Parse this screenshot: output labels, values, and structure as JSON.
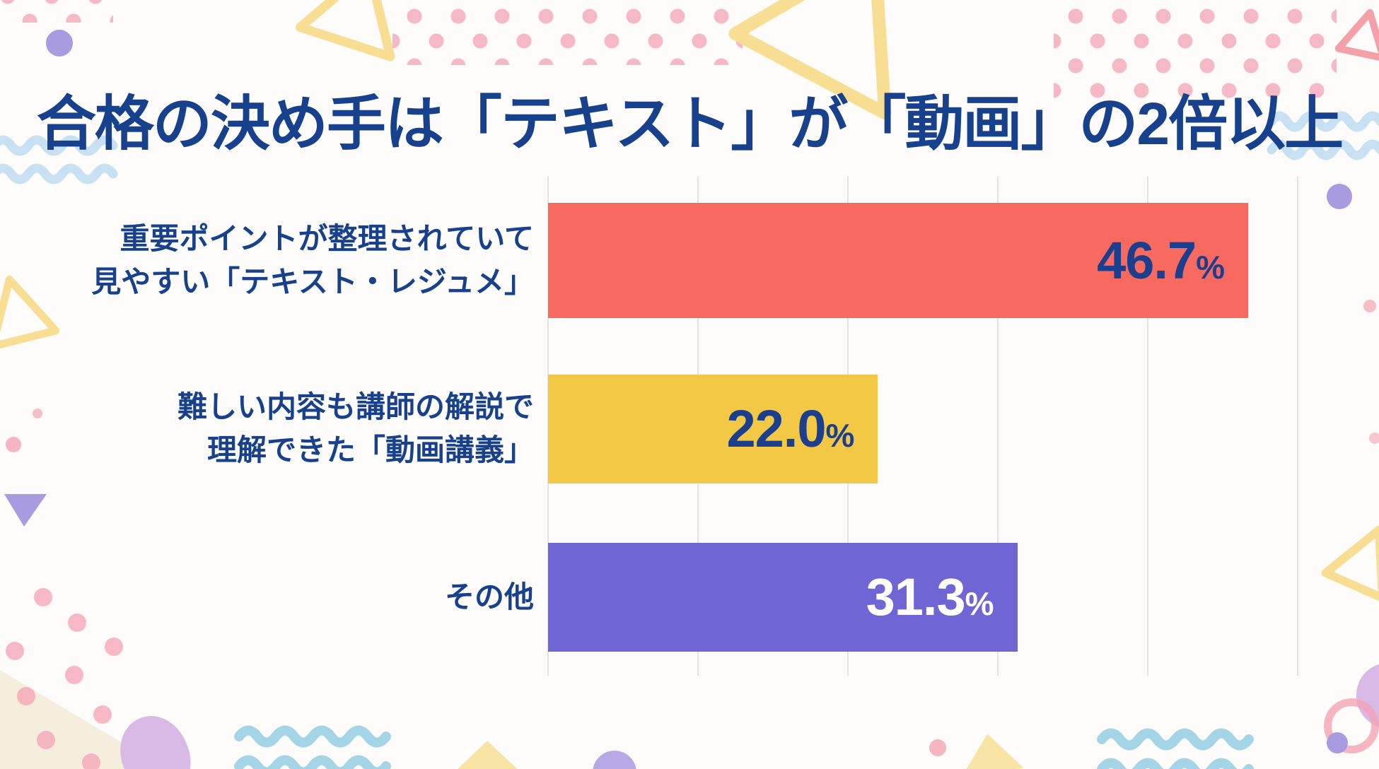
{
  "title": "合格の決め手は「テキスト」が「動画」の2倍以上",
  "chart_data": {
    "type": "bar",
    "orientation": "horizontal",
    "title": "合格の決め手は「テキスト」が「動画」の2倍以上",
    "categories": [
      "重要ポイントが整理されていて見やすい「テキスト・レジュメ」",
      "難しい内容も講師の解説で理解できた「動画講義」",
      "その他"
    ],
    "values": [
      46.7,
      22.0,
      31.3
    ],
    "unit": "%",
    "xlabel": "",
    "ylabel": "",
    "xlim": [
      0,
      50
    ],
    "gridline_interval": 10,
    "grid": true,
    "legend": false,
    "bar_colors": [
      "#F8695F",
      "#F3C845",
      "#6F65D5"
    ],
    "value_label_colors": [
      "#1B3F8E",
      "#1B3F8E",
      "#FFFFFF"
    ]
  },
  "bars": [
    {
      "label_line1": "重要ポイントが整理されていて",
      "label_line2": "見やすい「テキスト・レジュメ」",
      "value": "46.7",
      "unit": "%"
    },
    {
      "label_line1": "難しい内容も講師の解説で",
      "label_line2": "理解できた「動画講義」",
      "value": "22.0",
      "unit": "%"
    },
    {
      "label_line1": "その他",
      "label_line2": "",
      "value": "31.3",
      "unit": "%"
    }
  ],
  "colors": {
    "title_text": "#17418C",
    "background": "#FDFCFA",
    "gridline": "#E6E3DE",
    "decor_pink": "#F3A2B4",
    "decor_blue_wave_top": "#C7E0F2",
    "decor_blue_wave_bottom": "#A4D5E6",
    "decor_yellow": "#F7DE92",
    "decor_purple": "#A89BE0",
    "decor_lavender": "#D9BAE7",
    "decor_cream": "#F6EEDC"
  }
}
